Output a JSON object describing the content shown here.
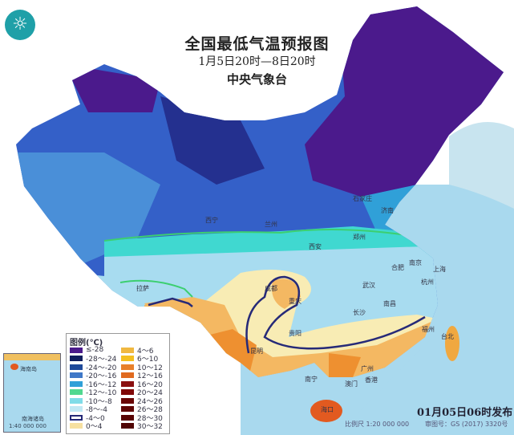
{
  "header": {
    "title": "全国最低气温预报图",
    "period": "1月5日20时—8日20时",
    "issuer": "中央气象台"
  },
  "colors": {
    "sea": "#a9d9ee",
    "purple": "#4b1a8c",
    "deep_blue": "#24308f",
    "blue": "#3460c8",
    "mid_blue": "#4a8fd8",
    "cyan": "#40d8d0",
    "light_blue": "#a8dcf0",
    "pale_yellow": "#f8ecb4",
    "orange": "#f4b862",
    "dark_orange": "#ee9030",
    "red_orange": "#e25a20",
    "contour": "#262a78"
  },
  "legend": {
    "title": "图例(℃)",
    "items": [
      {
        "label": "≤-28",
        "color": "#4b1a8c"
      },
      {
        "label": "-28～-24",
        "color": "#101e5e"
      },
      {
        "label": "-24～-20",
        "color": "#1f4a9a"
      },
      {
        "label": "-20～-16",
        "color": "#3f78c8"
      },
      {
        "label": "-16～-12",
        "color": "#30a0d8"
      },
      {
        "label": "-12～-10",
        "color": "#50d890"
      },
      {
        "label": "-10～-8",
        "color": "#80dce8"
      },
      {
        "label": "-8～-4",
        "color": "#c0e8f4"
      },
      {
        "label": "-4～0",
        "color": "#ffffff"
      },
      {
        "label": "0～4",
        "color": "#f6e0a0"
      },
      {
        "label": "4～6",
        "color": "#f0b840"
      },
      {
        "label": "6～10",
        "color": "#f4c020"
      },
      {
        "label": "10～12",
        "color": "#e8802a"
      },
      {
        "label": "12～16",
        "color": "#e06a20"
      },
      {
        "label": "16～20",
        "color": "#8a1010"
      },
      {
        "label": "20～24",
        "color": "#800808"
      },
      {
        "label": "24～26",
        "color": "#6a0606"
      },
      {
        "label": "26～28",
        "color": "#600505"
      },
      {
        "label": "28～30",
        "color": "#580404"
      },
      {
        "label": "30～32",
        "color": "#500404"
      }
    ]
  },
  "cities": [
    "西宁",
    "兰州",
    "石家庄",
    "济南",
    "郑州",
    "西安",
    "合肥",
    "南京",
    "上海",
    "武汉",
    "杭州",
    "成都",
    "重庆",
    "长沙",
    "南昌",
    "贵阳",
    "福州",
    "台北",
    "拉萨",
    "昆明",
    "南宁",
    "广州",
    "香港",
    "澳门",
    "海口"
  ],
  "inset": {
    "label": "南海诸岛",
    "scale": "1:40 000 000",
    "island": "海南岛"
  },
  "footer": {
    "published": "01月05日06时发布",
    "scale": "比例尺 1:20 000 000",
    "approval": "审图号：GS (2017) 3320号"
  }
}
